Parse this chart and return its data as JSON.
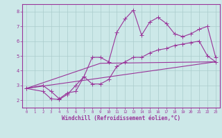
{
  "xlabel": "Windchill (Refroidissement éolien,°C)",
  "bg_color": "#cce8e8",
  "grid_color": "#aacccc",
  "line_color": "#993399",
  "spine_color": "#993399",
  "xlim": [
    -0.5,
    23.5
  ],
  "ylim": [
    1.5,
    8.5
  ],
  "xticks": [
    0,
    1,
    2,
    3,
    4,
    5,
    6,
    7,
    8,
    9,
    10,
    11,
    12,
    13,
    14,
    15,
    16,
    17,
    18,
    19,
    20,
    21,
    22,
    23
  ],
  "yticks": [
    2,
    3,
    4,
    5,
    6,
    7,
    8
  ],
  "series1_x": [
    0,
    2,
    3,
    4,
    5,
    6,
    7,
    8,
    9,
    10,
    11,
    12,
    13,
    14,
    15,
    16,
    17,
    18,
    19,
    20,
    21,
    22,
    23
  ],
  "series1_y": [
    2.8,
    3.0,
    2.6,
    2.1,
    2.5,
    2.6,
    3.6,
    4.9,
    4.9,
    4.6,
    6.6,
    7.5,
    8.1,
    6.4,
    7.3,
    7.6,
    7.2,
    6.5,
    6.3,
    6.5,
    6.8,
    7.0,
    4.9
  ],
  "series2_x": [
    0,
    2,
    3,
    4,
    5,
    6,
    7,
    8,
    9,
    10,
    11,
    12,
    13,
    14,
    15,
    16,
    17,
    18,
    19,
    20,
    21,
    22,
    23
  ],
  "series2_y": [
    2.8,
    2.6,
    2.1,
    2.05,
    2.4,
    3.0,
    3.6,
    3.1,
    3.1,
    3.4,
    4.3,
    4.6,
    4.9,
    4.9,
    5.2,
    5.4,
    5.5,
    5.7,
    5.8,
    5.9,
    6.0,
    5.0,
    4.6
  ],
  "series3_x": [
    0,
    23
  ],
  "series3_y": [
    2.8,
    4.6
  ],
  "series4_x": [
    0,
    9,
    23
  ],
  "series4_y": [
    2.8,
    4.5,
    4.6
  ],
  "marker": "P",
  "markersize": 3,
  "linewidth": 0.8
}
